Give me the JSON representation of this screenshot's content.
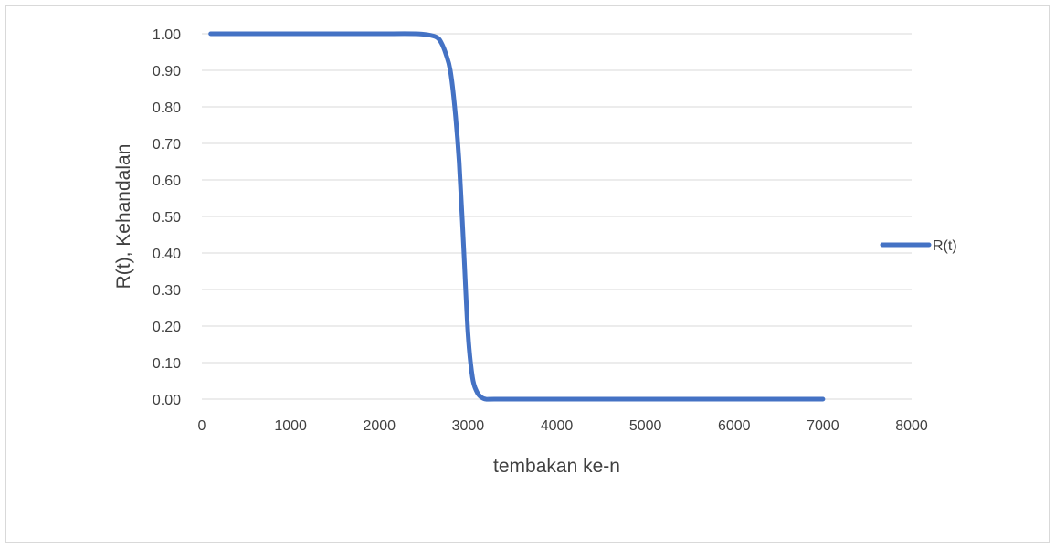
{
  "chart_data": {
    "type": "line",
    "title": "",
    "xlabel": "tembakan ke-n",
    "ylabel": "R(t), Kehandalan",
    "xlim": [
      0,
      8000
    ],
    "ylim": [
      0,
      1
    ],
    "x_ticks": [
      "0",
      "1000",
      "2000",
      "3000",
      "4000",
      "5000",
      "6000",
      "7000",
      "8000"
    ],
    "y_ticks": [
      "0.00",
      "0.10",
      "0.20",
      "0.30",
      "0.40",
      "0.50",
      "0.60",
      "0.70",
      "0.80",
      "0.90",
      "1.00"
    ],
    "grid": "horizontal",
    "legend_position": "right",
    "series": [
      {
        "name": "R(t)",
        "color": "#4472c4",
        "x": [
          100,
          500,
          1000,
          1500,
          2000,
          2400,
          2550,
          2650,
          2700,
          2750,
          2800,
          2850,
          2900,
          2950,
          3000,
          3050,
          3100,
          3150,
          3200,
          3300,
          4000,
          5000,
          6000,
          7000
        ],
        "y": [
          1.0,
          1.0,
          1.0,
          1.0,
          1.0,
          1.0,
          0.997,
          0.99,
          0.975,
          0.945,
          0.9,
          0.8,
          0.65,
          0.42,
          0.18,
          0.06,
          0.02,
          0.005,
          0.0,
          0.0,
          0.0,
          0.0,
          0.0,
          0.0
        ]
      }
    ]
  }
}
